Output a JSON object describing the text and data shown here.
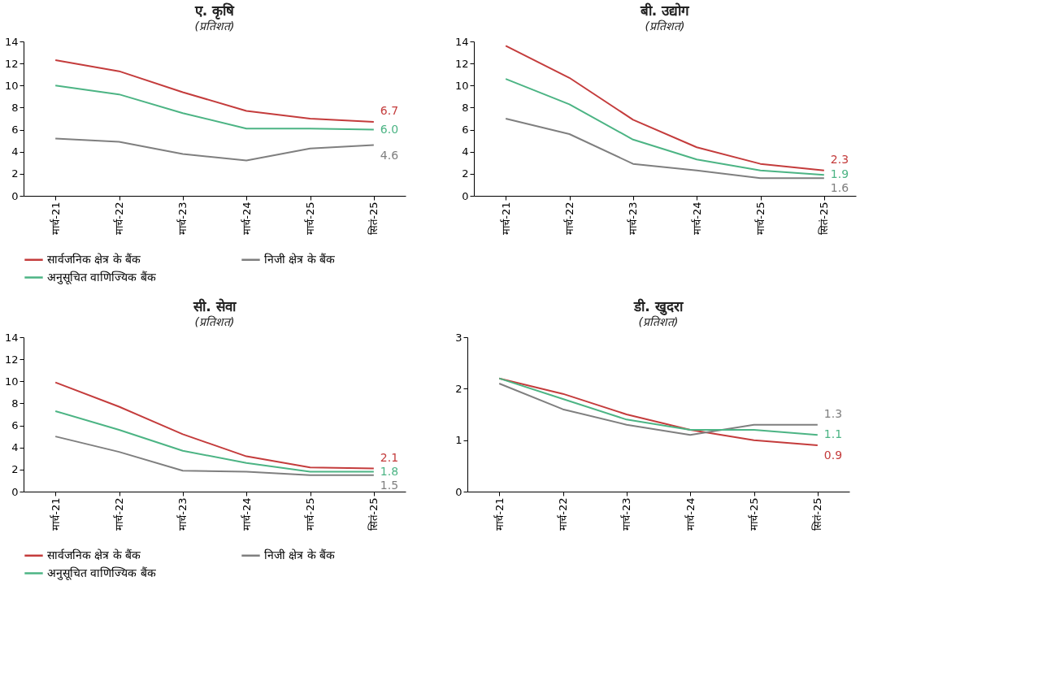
{
  "chart_data": [
    {
      "type": "line",
      "title": "ए. कृषि",
      "subtitle": "(प्रतिशत)",
      "categories": [
        "मार्च-21",
        "मार्च-22",
        "मार्च-23",
        "मार्च-24",
        "मार्च-25",
        "सितं-25"
      ],
      "ylim": [
        0,
        14
      ],
      "yticks": [
        0,
        2,
        4,
        6,
        8,
        10,
        12,
        14
      ],
      "grid": false,
      "legend": "bottom",
      "series": [
        {
          "name": "सार्वजनिक क्षेत्र के बैंक",
          "color": "#c43c3c",
          "values": [
            12.3,
            11.3,
            9.4,
            7.7,
            7.0,
            6.7
          ],
          "value_labels": [
            null,
            null,
            null,
            null,
            null,
            "6.7"
          ]
        },
        {
          "name": "निजी क्षेत्र के बैंक",
          "color": "#7f7f7f",
          "values": [
            5.2,
            4.9,
            3.8,
            3.2,
            4.3,
            4.6
          ],
          "value_labels": [
            null,
            null,
            null,
            null,
            null,
            "4.6"
          ]
        },
        {
          "name": "अनुसूचित वाणिज्यिक बैंक",
          "color": "#4cb484",
          "values": [
            10.0,
            9.2,
            7.5,
            6.1,
            6.1,
            6.0
          ],
          "value_labels": [
            null,
            null,
            null,
            null,
            null,
            "6.0"
          ]
        }
      ]
    },
    {
      "type": "line",
      "title": "बी. उद्योग",
      "subtitle": "(प्रतिशत)",
      "categories": [
        "मार्च-21",
        "मार्च-22",
        "मार्च-23",
        "मार्च-24",
        "मार्च-25",
        "सितं-25"
      ],
      "ylim": [
        0,
        14
      ],
      "yticks": [
        0,
        2,
        4,
        6,
        8,
        10,
        12,
        14
      ],
      "grid": false,
      "legend": "bottom",
      "series": [
        {
          "name": "सार्वजनिक क्षेत्र के बैंक",
          "color": "#c43c3c",
          "values": [
            13.6,
            10.7,
            6.9,
            4.4,
            2.9,
            2.3
          ],
          "value_labels": [
            null,
            null,
            null,
            null,
            null,
            "2.3"
          ]
        },
        {
          "name": "निजी क्षेत्र के बैंक",
          "color": "#7f7f7f",
          "values": [
            7.0,
            5.6,
            2.9,
            2.3,
            1.6,
            1.6
          ],
          "value_labels": [
            null,
            null,
            null,
            null,
            null,
            "1.6"
          ]
        },
        {
          "name": "अनुसूचित वाणिज्यिक बैंक",
          "color": "#4cb484",
          "values": [
            10.6,
            8.3,
            5.1,
            3.3,
            2.3,
            1.9
          ],
          "value_labels": [
            null,
            null,
            null,
            null,
            null,
            "1.9"
          ]
        }
      ]
    },
    {
      "type": "line",
      "title": "सी. सेवा",
      "subtitle": "(प्रतिशत)",
      "categories": [
        "मार्च-21",
        "मार्च-22",
        "मार्च-23",
        "मार्च-24",
        "मार्च-25",
        "सितं-25"
      ],
      "ylim": [
        0,
        14
      ],
      "yticks": [
        0,
        2,
        4,
        6,
        8,
        10,
        12,
        14
      ],
      "grid": false,
      "legend": "bottom",
      "series": [
        {
          "name": "सार्वजनिक क्षेत्र के बैंक",
          "color": "#c43c3c",
          "values": [
            9.9,
            7.7,
            5.2,
            3.2,
            2.2,
            2.1
          ],
          "value_labels": [
            null,
            null,
            null,
            null,
            null,
            "2.1"
          ]
        },
        {
          "name": "निजी क्षेत्र के बैंक",
          "color": "#7f7f7f",
          "values": [
            5.0,
            3.6,
            1.9,
            1.8,
            1.5,
            1.5
          ],
          "value_labels": [
            null,
            null,
            null,
            null,
            null,
            "1.5"
          ]
        },
        {
          "name": "अनुसूचित वाणिज्यिक बैंक",
          "color": "#4cb484",
          "values": [
            7.3,
            5.6,
            3.7,
            2.6,
            1.8,
            1.8
          ],
          "value_labels": [
            null,
            null,
            null,
            null,
            null,
            "1.8"
          ]
        }
      ]
    },
    {
      "type": "line",
      "title": "डी. खुदरा",
      "subtitle": "(प्रतिशत)",
      "categories": [
        "मार्च-21",
        "मार्च-22",
        "मार्च-23",
        "मार्च-24",
        "मार्च-25",
        "सितं-25"
      ],
      "ylim": [
        0,
        3
      ],
      "yticks": [
        0,
        1,
        2,
        3
      ],
      "grid": false,
      "legend": "bottom",
      "series": [
        {
          "name": "सार्वजनिक क्षेत्र के बैंक",
          "color": "#c43c3c",
          "values": [
            2.2,
            1.9,
            1.5,
            1.2,
            1.0,
            0.9
          ],
          "value_labels": [
            null,
            null,
            null,
            null,
            null,
            "0.9"
          ]
        },
        {
          "name": "निजी क्षेत्र के बैंक",
          "color": "#7f7f7f",
          "values": [
            2.1,
            1.6,
            1.3,
            1.1,
            1.3,
            1.3
          ],
          "value_labels": [
            null,
            null,
            null,
            null,
            null,
            "1.3"
          ]
        },
        {
          "name": "अनुसूचित वाणिज्यिक बैंक",
          "color": "#4cb484",
          "values": [
            2.2,
            1.8,
            1.4,
            1.2,
            1.2,
            1.1
          ],
          "value_labels": [
            null,
            null,
            null,
            null,
            null,
            "1.1"
          ]
        }
      ]
    }
  ]
}
